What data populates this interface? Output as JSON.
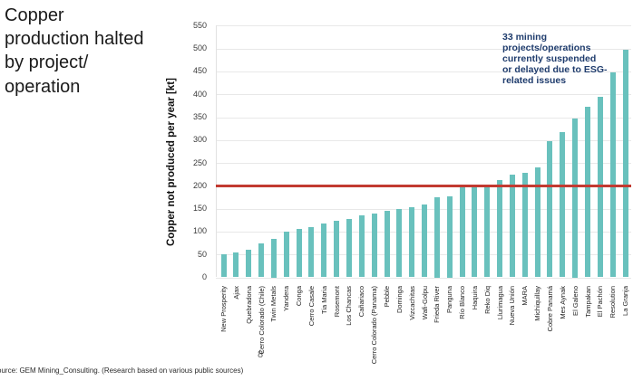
{
  "header": {
    "title": "Copper\nproduction halted\nby project/\noperation"
  },
  "annotation": "33 mining\nprojects/operations\ncurrently suspended\nor delayed due to ESG-\nrelated issues",
  "source_note": "ource: GEM Mining_Consulting. (Research based on various public sources)",
  "stray_glyph": "8",
  "colors": {
    "bar": "#69c1bd",
    "reference_line": "#c23a31",
    "annotation_text": "#1f3c6d",
    "grid": "#e8e8e8",
    "title_text": "#1a1a1a"
  },
  "chart_data": {
    "type": "bar",
    "title": "Copper production halted by project/operation",
    "xlabel": "",
    "ylabel": "Copper not produced per year [kt]",
    "ylim": [
      0,
      550
    ],
    "ytick_step": 50,
    "grid": true,
    "legend": "none",
    "bar_color": "#69c1bd",
    "reference_line": {
      "value": 200,
      "color": "#c23a31"
    },
    "annotation": "33 mining projects/operations currently suspended or delayed due to ESG-related issues",
    "categories": [
      "New Prosperity",
      "Ajax",
      "Quebradona",
      "Cerro Colorado (Chile)",
      "Twin Metals",
      "Yandera",
      "Conga",
      "Cerro Casale",
      "Tia Maria",
      "Rosemont",
      "Los Chancas",
      "Cañariaco",
      "Cerro Colorado (Panama)",
      "Pebble",
      "Dominga",
      "Vizcachitas",
      "Wafi-Golpu",
      "Frieda River",
      "Panguna",
      "Río Blanco",
      "Haquira",
      "Reko Diq",
      "Llurimagua",
      "Nueva Unión",
      "MARA",
      "Michiquillay",
      "Cobre Panamá",
      "Mes Aynak",
      "El Galeno",
      "Tampakan",
      "El Pachón",
      "Resolution",
      "La Granja"
    ],
    "values": [
      50,
      55,
      60,
      75,
      85,
      100,
      105,
      110,
      117,
      123,
      128,
      135,
      140,
      145,
      150,
      153,
      160,
      175,
      178,
      198,
      200,
      203,
      212,
      225,
      228,
      240,
      298,
      318,
      348,
      372,
      395,
      447,
      498
    ]
  }
}
